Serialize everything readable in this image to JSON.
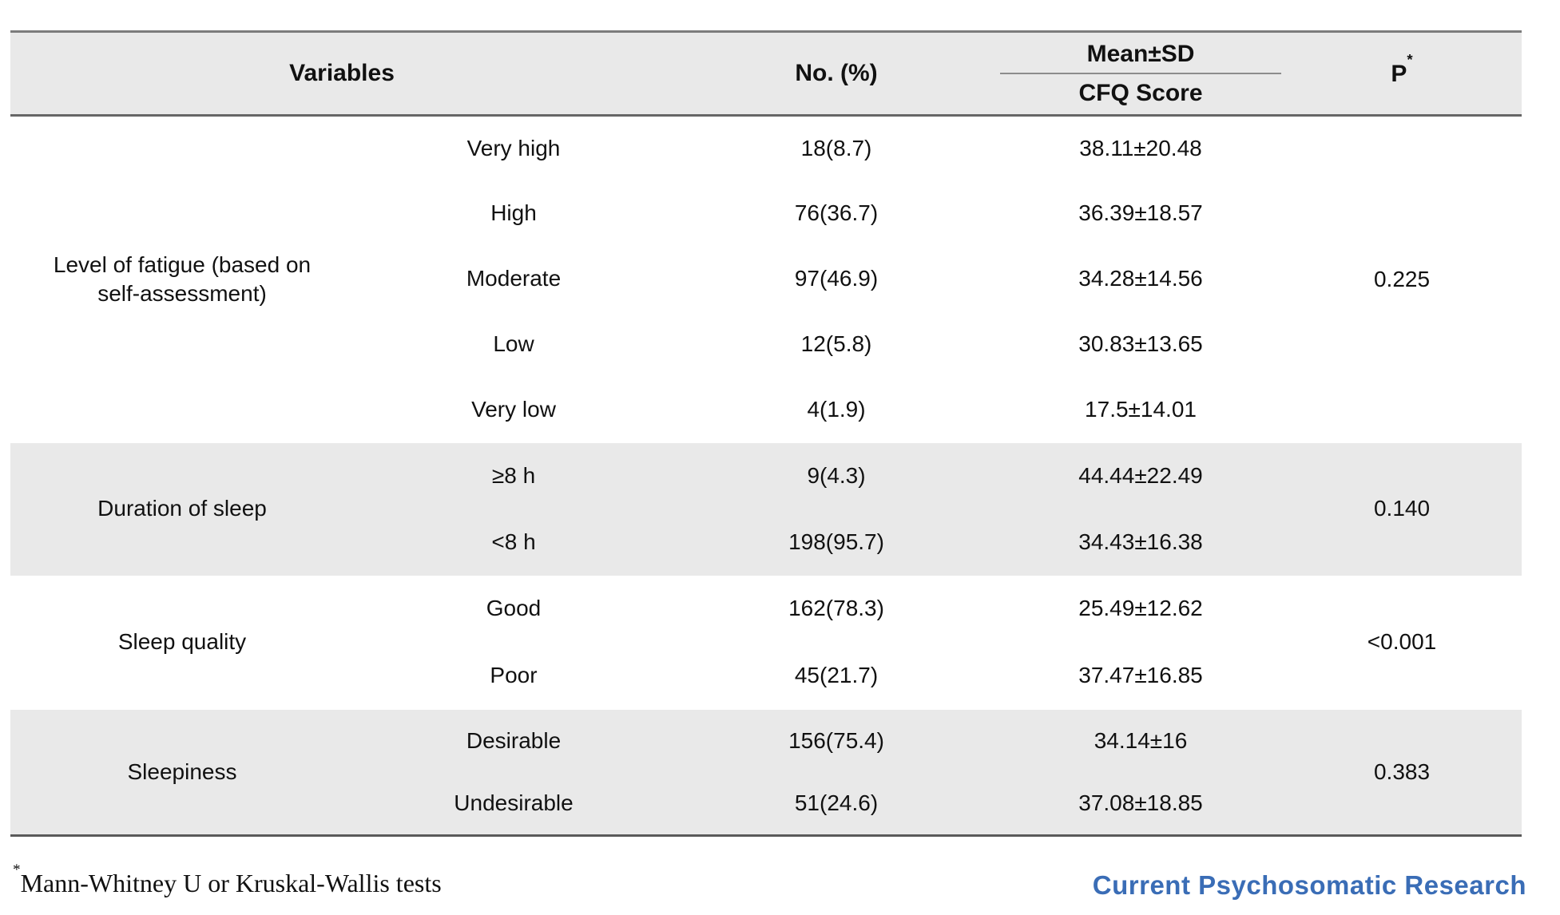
{
  "table": {
    "headers": {
      "variables": "Variables",
      "no_pct": "No. (%)",
      "mean_sd": "Mean±SD",
      "cfq_score": "CFQ Score",
      "p": "P",
      "p_marker": "*"
    },
    "sections": [
      {
        "group": "Level of fatigue (based on self-assessment)",
        "p": "0.225",
        "shaded": false,
        "rows": [
          {
            "label": "Very high",
            "n": "18(8.7)",
            "mean": "38.11±20.48"
          },
          {
            "label": "High",
            "n": "76(36.7)",
            "mean": "36.39±18.57"
          },
          {
            "label": "Moderate",
            "n": "97(46.9)",
            "mean": "34.28±14.56"
          },
          {
            "label": "Low",
            "n": "12(5.8)",
            "mean": "30.83±13.65"
          },
          {
            "label": "Very low",
            "n": "4(1.9)",
            "mean": "17.5±14.01"
          }
        ]
      },
      {
        "group": "Duration of sleep",
        "p": "0.140",
        "shaded": true,
        "rows": [
          {
            "label": "≥8 h",
            "n": "9(4.3)",
            "mean": "44.44±22.49"
          },
          {
            "label": "<8 h",
            "n": "198(95.7)",
            "mean": "34.43±16.38"
          }
        ]
      },
      {
        "group": "Sleep quality",
        "p": "<0.001",
        "shaded": false,
        "rows": [
          {
            "label": "Good",
            "n": "162(78.3)",
            "mean": "25.49±12.62"
          },
          {
            "label": "Poor",
            "n": "45(21.7)",
            "mean": "37.47±16.85"
          }
        ]
      },
      {
        "group": "Sleepiness",
        "p": "0.383",
        "shaded": true,
        "rows": [
          {
            "label": "Desirable",
            "n": "156(75.4)",
            "mean": "34.14±16"
          },
          {
            "label": "Undesirable",
            "n": "51(24.6)",
            "mean": "37.08±18.85"
          }
        ]
      }
    ]
  },
  "footnote": {
    "marker": "*",
    "text": "Mann-Whitney U or Kruskal-Wallis tests"
  },
  "journal": {
    "name": "Current Psychosomatic Research"
  },
  "colors": {
    "shaded_row_bg": "#e9e9e9",
    "header_bg": "#e9e9e9",
    "rule_dark": "#5a5a5a",
    "rule_mid": "#8c8c8c",
    "logo_blue": "#3a6db6",
    "text": "#111111"
  }
}
